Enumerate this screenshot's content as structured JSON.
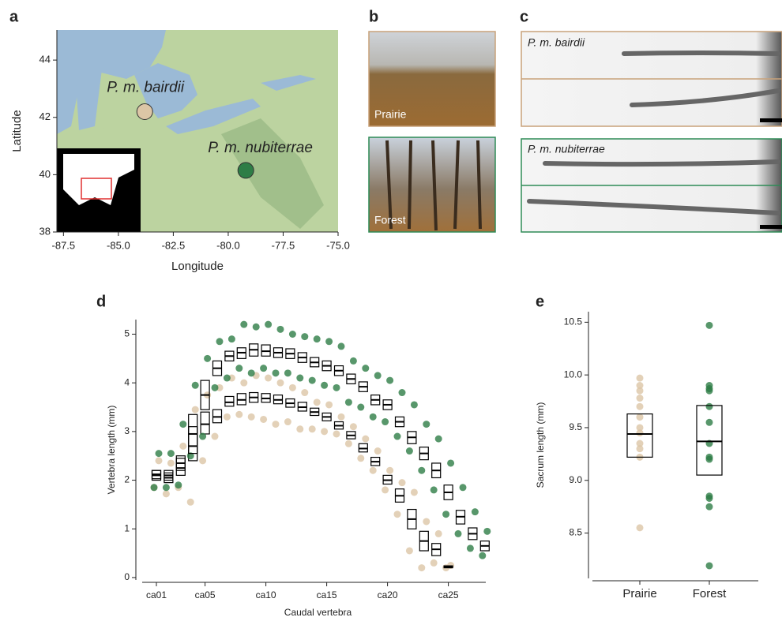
{
  "chart_data": [
    {
      "type": "scatter",
      "panel": "a",
      "xlabel": "Longitude",
      "ylabel": "Latitude",
      "xlim": [
        -87.8,
        -75
      ],
      "ylim": [
        38,
        45.05
      ],
      "xticks": [
        -87.5,
        {
          "value": -85,
          "label": "-85.0"
        },
        -82.5,
        {
          "value": -80,
          "label": "-80.0"
        },
        -77.5,
        {
          "value": -75,
          "label": "-75.0"
        }
      ],
      "yticks": [
        38,
        40,
        42,
        44
      ],
      "series": [
        {
          "name": "P. m. bairdii",
          "color": "#dcc6a6",
          "x": [
            -83.8
          ],
          "values": [
            42.2
          ]
        },
        {
          "name": "P. m. nubiterrae",
          "color": "#2e7d46",
          "x": [
            -79.2
          ],
          "values": [
            40.15
          ]
        }
      ]
    },
    {
      "type": "box",
      "panel": "d",
      "xlabel": "Caudal vertebra",
      "ylabel": "Vertebra length (mm)",
      "categories": [
        "ca01",
        null,
        null,
        null,
        "ca05",
        null,
        null,
        null,
        null,
        "ca10",
        null,
        null,
        null,
        null,
        "ca15",
        null,
        null,
        null,
        null,
        "ca20",
        null,
        null,
        null,
        null,
        "ca25",
        null,
        null,
        null
      ],
      "ylim": [
        -0.05,
        5.3
      ],
      "yticks": [
        0,
        1,
        2,
        3,
        4,
        5
      ],
      "series": [
        {
          "color": "#dcc6a6",
          "values": [
            2.1,
            2.05,
            2.25,
            2.7,
            3.15,
            3.3,
            3.6,
            3.65,
            3.7,
            3.68,
            3.65,
            3.58,
            3.5,
            3.4,
            3.3,
            3.12,
            2.92,
            2.65,
            2.38,
            2.0,
            1.68,
            1.2,
            0.75,
            0.58,
            0.22,
            null,
            null,
            null
          ],
          "q1": [
            2.0,
            1.95,
            2.1,
            2.4,
            2.95,
            3.18,
            3.52,
            3.55,
            3.6,
            3.6,
            3.57,
            3.5,
            3.42,
            3.33,
            3.22,
            3.05,
            2.85,
            2.58,
            2.3,
            1.92,
            1.55,
            1.0,
            0.55,
            0.45,
            0.2,
            null,
            null,
            null
          ],
          "q3": [
            2.2,
            2.15,
            2.45,
            3.1,
            3.4,
            3.45,
            3.72,
            3.78,
            3.8,
            3.78,
            3.75,
            3.67,
            3.6,
            3.48,
            3.38,
            3.2,
            3.0,
            2.75,
            2.47,
            2.1,
            1.82,
            1.4,
            0.95,
            0.7,
            0.24,
            null,
            null,
            null
          ],
          "min": [
            1.85,
            1.72,
            1.85,
            1.55,
            2.4,
            2.9,
            3.3,
            3.35,
            3.3,
            3.25,
            3.15,
            3.2,
            3.05,
            3.05,
            3.0,
            2.95,
            2.75,
            2.45,
            2.2,
            1.8,
            1.3,
            0.55,
            0.2,
            0.3,
            0.2,
            null,
            null,
            null
          ],
          "max": [
            2.4,
            2.35,
            2.7,
            3.45,
            3.75,
            3.9,
            4.1,
            4.0,
            4.15,
            4.1,
            4.0,
            3.9,
            3.8,
            3.6,
            3.55,
            3.3,
            3.1,
            2.85,
            2.6,
            2.2,
            1.95,
            1.75,
            1.15,
            0.9,
            0.25,
            null,
            null,
            null
          ]
        },
        {
          "color": "#2e7d46",
          "values": [
            2.12,
            2.1,
            2.35,
            2.95,
            3.75,
            4.3,
            4.55,
            4.62,
            4.68,
            4.65,
            4.62,
            4.6,
            4.52,
            4.42,
            4.35,
            4.25,
            4.08,
            3.92,
            3.65,
            3.55,
            3.2,
            2.88,
            2.55,
            2.2,
            1.75,
            1.25,
            0.9,
            0.65
          ],
          "q1": [
            2.03,
            2.0,
            2.2,
            2.55,
            3.45,
            4.15,
            4.45,
            4.5,
            4.55,
            4.55,
            4.52,
            4.5,
            4.42,
            4.33,
            4.25,
            4.15,
            3.98,
            3.82,
            3.55,
            3.45,
            3.1,
            2.75,
            2.42,
            2.05,
            1.6,
            1.1,
            0.78,
            0.55
          ],
          "q3": [
            2.2,
            2.2,
            2.5,
            3.35,
            4.05,
            4.45,
            4.65,
            4.72,
            4.8,
            4.78,
            4.72,
            4.7,
            4.62,
            4.52,
            4.45,
            4.35,
            4.18,
            4.02,
            3.75,
            3.65,
            3.3,
            3.0,
            2.68,
            2.35,
            1.9,
            1.38,
            1.02,
            0.75
          ],
          "min": [
            1.85,
            1.85,
            1.9,
            2.5,
            2.9,
            3.9,
            4.1,
            4.3,
            4.2,
            4.3,
            4.2,
            4.2,
            4.1,
            4.05,
            3.95,
            3.9,
            3.6,
            3.5,
            3.3,
            3.2,
            2.9,
            2.6,
            2.2,
            1.8,
            1.3,
            0.9,
            0.6,
            0.45
          ],
          "max": [
            2.55,
            2.55,
            3.15,
            3.95,
            4.5,
            4.85,
            4.9,
            5.2,
            5.15,
            5.2,
            5.1,
            5.0,
            4.95,
            4.9,
            4.85,
            4.75,
            4.45,
            4.3,
            4.15,
            4.05,
            3.8,
            3.55,
            3.15,
            2.85,
            2.35,
            1.85,
            1.35,
            0.95
          ]
        }
      ]
    },
    {
      "type": "box",
      "panel": "e",
      "ylabel": "Sacrum length (mm)",
      "categories": [
        "Prairie",
        "Forest"
      ],
      "ylim": [
        8.07,
        10.6
      ],
      "yticks": [
        8.5,
        {
          "value": 9,
          "label": "9.0"
        },
        9.5,
        {
          "value": 10,
          "label": "10.0"
        },
        10.5
      ],
      "series": [
        {
          "colors": [
            "#dcc6a6",
            "#2e7d46"
          ],
          "values": [
            9.44,
            9.37
          ],
          "q1": [
            9.22,
            9.05
          ],
          "q3": [
            9.63,
            9.71
          ],
          "points": [
            [
              9.97,
              9.9,
              9.85,
              9.78,
              9.7,
              9.6,
              9.5,
              9.45,
              9.35,
              9.3,
              9.22,
              8.55
            ],
            [
              10.47,
              9.9,
              9.87,
              9.85,
              9.7,
              9.55,
              9.35,
              9.22,
              9.2,
              8.85,
              8.83,
              8.75,
              8.19
            ]
          ]
        }
      ]
    }
  ],
  "photos": {
    "panel": "b",
    "labels": [
      "Prairie",
      "Forest"
    ]
  },
  "xrays": {
    "panel": "c",
    "labels": [
      "P. m. bairdii",
      "P. m. nubiterrae"
    ]
  }
}
